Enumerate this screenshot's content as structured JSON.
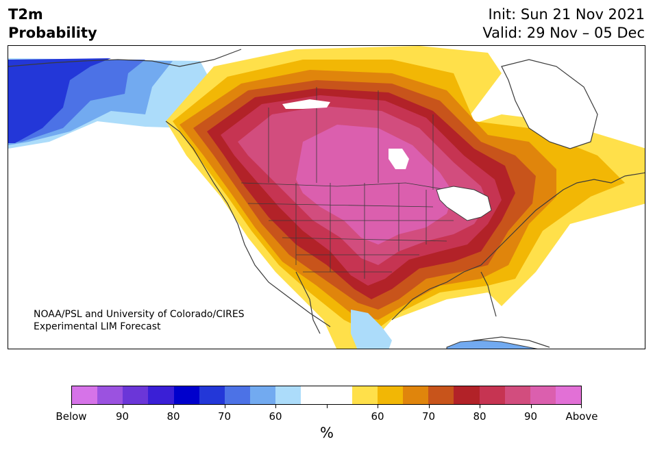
{
  "header": {
    "title_line1": "T2m",
    "title_line2": "Probability",
    "init_text": "Init: Sun 21 Nov 2021",
    "valid_text": "Valid: 29 Nov – 05 Dec"
  },
  "map": {
    "credit_line1": "NOAA/PSL and University of Colorado/CIRES",
    "credit_line2": "Experimental LIM Forecast"
  },
  "legend": {
    "unit_label": "%",
    "tick_labels": [
      "Below",
      "90",
      "80",
      "70",
      "60",
      "",
      "60",
      "70",
      "80",
      "90",
      "Above"
    ],
    "colors": [
      "#d673e8",
      "#9b52e0",
      "#6b36d8",
      "#3a1fd6",
      "#0000cc",
      "#2337d8",
      "#4c72e6",
      "#72aaf0",
      "#acdcfa",
      "#ffffff",
      "#ffffff",
      "#ffe04a",
      "#f2b705",
      "#e0850c",
      "#c8541b",
      "#b22228",
      "#c63452",
      "#d24d7e",
      "#db5fae",
      "#e270d6"
    ]
  },
  "colors": {
    "cold_dark": "#2337d8",
    "cold_mid": "#4c72e6",
    "cold_light": "#72aaf0",
    "cold_pale": "#acdcfa",
    "warm_yellow": "#ffe04a",
    "warm_gold": "#f2b705",
    "warm_orange": "#e0850c",
    "warm_rust": "#c8541b",
    "warm_red": "#b22228",
    "warm_crimson": "#c63452",
    "warm_rose": "#d24d7e",
    "warm_pink": "#db5fae"
  }
}
